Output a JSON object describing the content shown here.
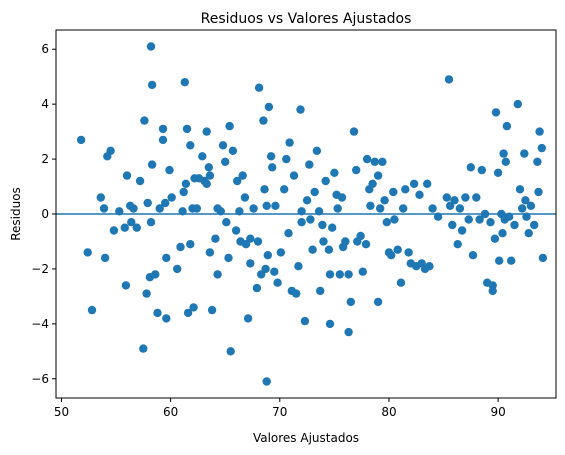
{
  "chart_data": {
    "type": "scatter",
    "title": "Residuos vs Valores Ajustados",
    "xlabel": "Valores Ajustados",
    "ylabel": "Residuos",
    "xlim": [
      49.5,
      95.3
    ],
    "ylim": [
      -6.7,
      6.7
    ],
    "xticks": [
      50,
      60,
      70,
      80,
      90
    ],
    "yticks": [
      -6,
      -4,
      -2,
      0,
      2,
      4,
      6
    ],
    "grid": false,
    "reference_line": {
      "y": 0
    },
    "colors": {
      "marker": "#1f77b4",
      "line": "#1f77b4"
    },
    "series": [
      {
        "points": [
          [
            51.8,
            2.7
          ],
          [
            52.4,
            -1.4
          ],
          [
            52.8,
            -3.5
          ],
          [
            53.6,
            0.6
          ],
          [
            53.9,
            0.2
          ],
          [
            54.0,
            -1.6
          ],
          [
            54.2,
            2.1
          ],
          [
            54.5,
            2.3
          ],
          [
            54.8,
            -0.6
          ],
          [
            55.3,
            0.1
          ],
          [
            55.8,
            -0.5
          ],
          [
            56.0,
            1.4
          ],
          [
            55.9,
            -2.6
          ],
          [
            56.3,
            0.3
          ],
          [
            56.4,
            -0.3
          ],
          [
            56.6,
            0.2
          ],
          [
            56.9,
            -0.5
          ],
          [
            57.2,
            1.2
          ],
          [
            57.5,
            -4.9
          ],
          [
            57.6,
            3.4
          ],
          [
            57.9,
            0.4
          ],
          [
            57.8,
            -2.9
          ],
          [
            58.1,
            -2.3
          ],
          [
            58.2,
            6.1
          ],
          [
            58.3,
            4.7
          ],
          [
            58.3,
            1.8
          ],
          [
            58.2,
            -0.3
          ],
          [
            58.6,
            -2.2
          ],
          [
            58.8,
            -3.6
          ],
          [
            59.0,
            0.2
          ],
          [
            59.3,
            2.7
          ],
          [
            59.3,
            3.1
          ],
          [
            59.5,
            0.4
          ],
          [
            59.6,
            -1.6
          ],
          [
            59.6,
            -3.8
          ],
          [
            59.9,
            1.6
          ],
          [
            60.1,
            0.6
          ],
          [
            60.6,
            -2.0
          ],
          [
            60.9,
            -1.2
          ],
          [
            61.1,
            0.1
          ],
          [
            61.2,
            0.8
          ],
          [
            61.3,
            4.8
          ],
          [
            61.4,
            1.1
          ],
          [
            61.5,
            3.1
          ],
          [
            61.6,
            -3.6
          ],
          [
            61.8,
            2.5
          ],
          [
            61.8,
            -1.1
          ],
          [
            62.0,
            0.2
          ],
          [
            62.1,
            -3.4
          ],
          [
            62.2,
            1.3
          ],
          [
            62.4,
            0.2
          ],
          [
            62.6,
            1.3
          ],
          [
            62.9,
            2.1
          ],
          [
            63.1,
            1.2
          ],
          [
            63.3,
            1.1
          ],
          [
            63.3,
            3.0
          ],
          [
            63.5,
            1.7
          ],
          [
            63.6,
            1.4
          ],
          [
            63.6,
            -1.4
          ],
          [
            63.8,
            -3.5
          ],
          [
            64.1,
            -0.9
          ],
          [
            64.3,
            0.2
          ],
          [
            64.3,
            -2.2
          ],
          [
            64.6,
            0.1
          ],
          [
            64.8,
            2.5
          ],
          [
            65.0,
            1.9
          ],
          [
            65.1,
            -0.3
          ],
          [
            65.3,
            -1.6
          ],
          [
            65.4,
            3.2
          ],
          [
            65.5,
            -5.0
          ],
          [
            65.7,
            2.3
          ],
          [
            66.0,
            -0.6
          ],
          [
            66.1,
            1.2
          ],
          [
            66.3,
            0.1
          ],
          [
            66.4,
            -1.0
          ],
          [
            66.6,
            1.4
          ],
          [
            66.8,
            0.6
          ],
          [
            66.9,
            -1.1
          ],
          [
            67.1,
            -3.8
          ],
          [
            67.3,
            -0.9
          ],
          [
            67.3,
            -1.8
          ],
          [
            67.6,
            0.2
          ],
          [
            67.9,
            -2.7
          ],
          [
            68.0,
            -1.0
          ],
          [
            68.1,
            4.6
          ],
          [
            68.3,
            -2.2
          ],
          [
            68.5,
            3.4
          ],
          [
            68.6,
            0.9
          ],
          [
            68.7,
            -2.0
          ],
          [
            68.8,
            0.3
          ],
          [
            68.8,
            -6.1
          ],
          [
            68.9,
            -1.5
          ],
          [
            69.0,
            3.9
          ],
          [
            69.2,
            2.1
          ],
          [
            69.3,
            1.7
          ],
          [
            69.5,
            -2.1
          ],
          [
            69.6,
            0.3
          ],
          [
            69.8,
            -2.5
          ],
          [
            70.1,
            -1.4
          ],
          [
            70.4,
            0.9
          ],
          [
            70.6,
            2.0
          ],
          [
            70.8,
            -0.7
          ],
          [
            70.9,
            2.6
          ],
          [
            71.1,
            -2.8
          ],
          [
            71.3,
            1.4
          ],
          [
            71.5,
            -2.9
          ],
          [
            71.7,
            -1.9
          ],
          [
            71.9,
            3.8
          ],
          [
            72.0,
            0.1
          ],
          [
            72.0,
            -0.3
          ],
          [
            72.3,
            -3.9
          ],
          [
            72.5,
            0.5
          ],
          [
            72.7,
            1.8
          ],
          [
            72.8,
            -0.2
          ],
          [
            73.0,
            -1.3
          ],
          [
            73.2,
            0.8
          ],
          [
            73.4,
            2.3
          ],
          [
            73.6,
            0.1
          ],
          [
            73.7,
            -2.8
          ],
          [
            73.9,
            -0.4
          ],
          [
            74.0,
            -1.0
          ],
          [
            74.2,
            1.2
          ],
          [
            74.5,
            -1.3
          ],
          [
            74.6,
            -2.2
          ],
          [
            74.6,
            -4.0
          ],
          [
            74.8,
            -0.5
          ],
          [
            75.0,
            1.5
          ],
          [
            75.2,
            0.7
          ],
          [
            75.3,
            0.2
          ],
          [
            75.5,
            -2.2
          ],
          [
            75.7,
            0.6
          ],
          [
            75.8,
            -1.2
          ],
          [
            76.0,
            -1.0
          ],
          [
            76.3,
            -2.2
          ],
          [
            76.3,
            -4.3
          ],
          [
            76.5,
            -3.2
          ],
          [
            76.8,
            3.0
          ],
          [
            77.0,
            1.6
          ],
          [
            77.1,
            -1.0
          ],
          [
            77.4,
            -0.8
          ],
          [
            77.6,
            -2.1
          ],
          [
            77.9,
            -1.1
          ],
          [
            78.0,
            2.0
          ],
          [
            78.2,
            0.9
          ],
          [
            78.3,
            0.3
          ],
          [
            78.5,
            1.1
          ],
          [
            78.7,
            1.9
          ],
          [
            79.0,
            1.4
          ],
          [
            79.0,
            -3.2
          ],
          [
            79.2,
            0.2
          ],
          [
            79.4,
            1.9
          ],
          [
            79.6,
            0.5
          ],
          [
            79.8,
            -0.3
          ],
          [
            80.0,
            -1.4
          ],
          [
            80.2,
            -1.5
          ],
          [
            80.4,
            0.8
          ],
          [
            80.5,
            -0.2
          ],
          [
            80.8,
            -1.3
          ],
          [
            81.1,
            -2.5
          ],
          [
            81.3,
            0.2
          ],
          [
            81.5,
            0.9
          ],
          [
            81.8,
            -1.4
          ],
          [
            82.0,
            -1.8
          ],
          [
            82.3,
            1.1
          ],
          [
            82.5,
            -1.9
          ],
          [
            82.8,
            0.7
          ],
          [
            83.0,
            -1.8
          ],
          [
            83.3,
            -2.0
          ],
          [
            83.5,
            1.1
          ],
          [
            83.7,
            -1.9
          ],
          [
            84.0,
            0.2
          ],
          [
            84.5,
            -0.1
          ],
          [
            85.3,
            0.6
          ],
          [
            85.5,
            4.9
          ],
          [
            85.6,
            0.3
          ],
          [
            85.8,
            -0.4
          ],
          [
            86.0,
            0.5
          ],
          [
            86.3,
            -1.1
          ],
          [
            86.5,
            0.2
          ],
          [
            86.7,
            -0.6
          ],
          [
            87.0,
            0.6
          ],
          [
            87.3,
            -0.2
          ],
          [
            87.5,
            1.7
          ],
          [
            87.7,
            -1.5
          ],
          [
            88.0,
            0.6
          ],
          [
            88.3,
            -0.2
          ],
          [
            88.5,
            1.6
          ],
          [
            88.8,
            0.0
          ],
          [
            89.0,
            -2.5
          ],
          [
            89.3,
            -0.3
          ],
          [
            89.5,
            -2.6
          ],
          [
            89.5,
            -2.8
          ],
          [
            89.7,
            -0.9
          ],
          [
            89.8,
            3.7
          ],
          [
            90.0,
            1.5
          ],
          [
            90.1,
            -1.7
          ],
          [
            90.3,
            0.0
          ],
          [
            90.4,
            -0.7
          ],
          [
            90.5,
            2.2
          ],
          [
            90.6,
            -0.2
          ],
          [
            90.7,
            1.9
          ],
          [
            90.8,
            3.2
          ],
          [
            91.0,
            -0.1
          ],
          [
            91.2,
            -1.7
          ],
          [
            91.5,
            -0.4
          ],
          [
            91.8,
            4.0
          ],
          [
            92.0,
            0.9
          ],
          [
            92.2,
            0.2
          ],
          [
            92.4,
            2.2
          ],
          [
            92.5,
            0.5
          ],
          [
            92.6,
            -0.1
          ],
          [
            92.8,
            -0.7
          ],
          [
            93.0,
            0.3
          ],
          [
            93.3,
            -0.4
          ],
          [
            93.6,
            1.9
          ],
          [
            93.7,
            0.8
          ],
          [
            93.8,
            3.0
          ],
          [
            94.0,
            2.4
          ],
          [
            94.1,
            -1.6
          ]
        ]
      }
    ]
  }
}
